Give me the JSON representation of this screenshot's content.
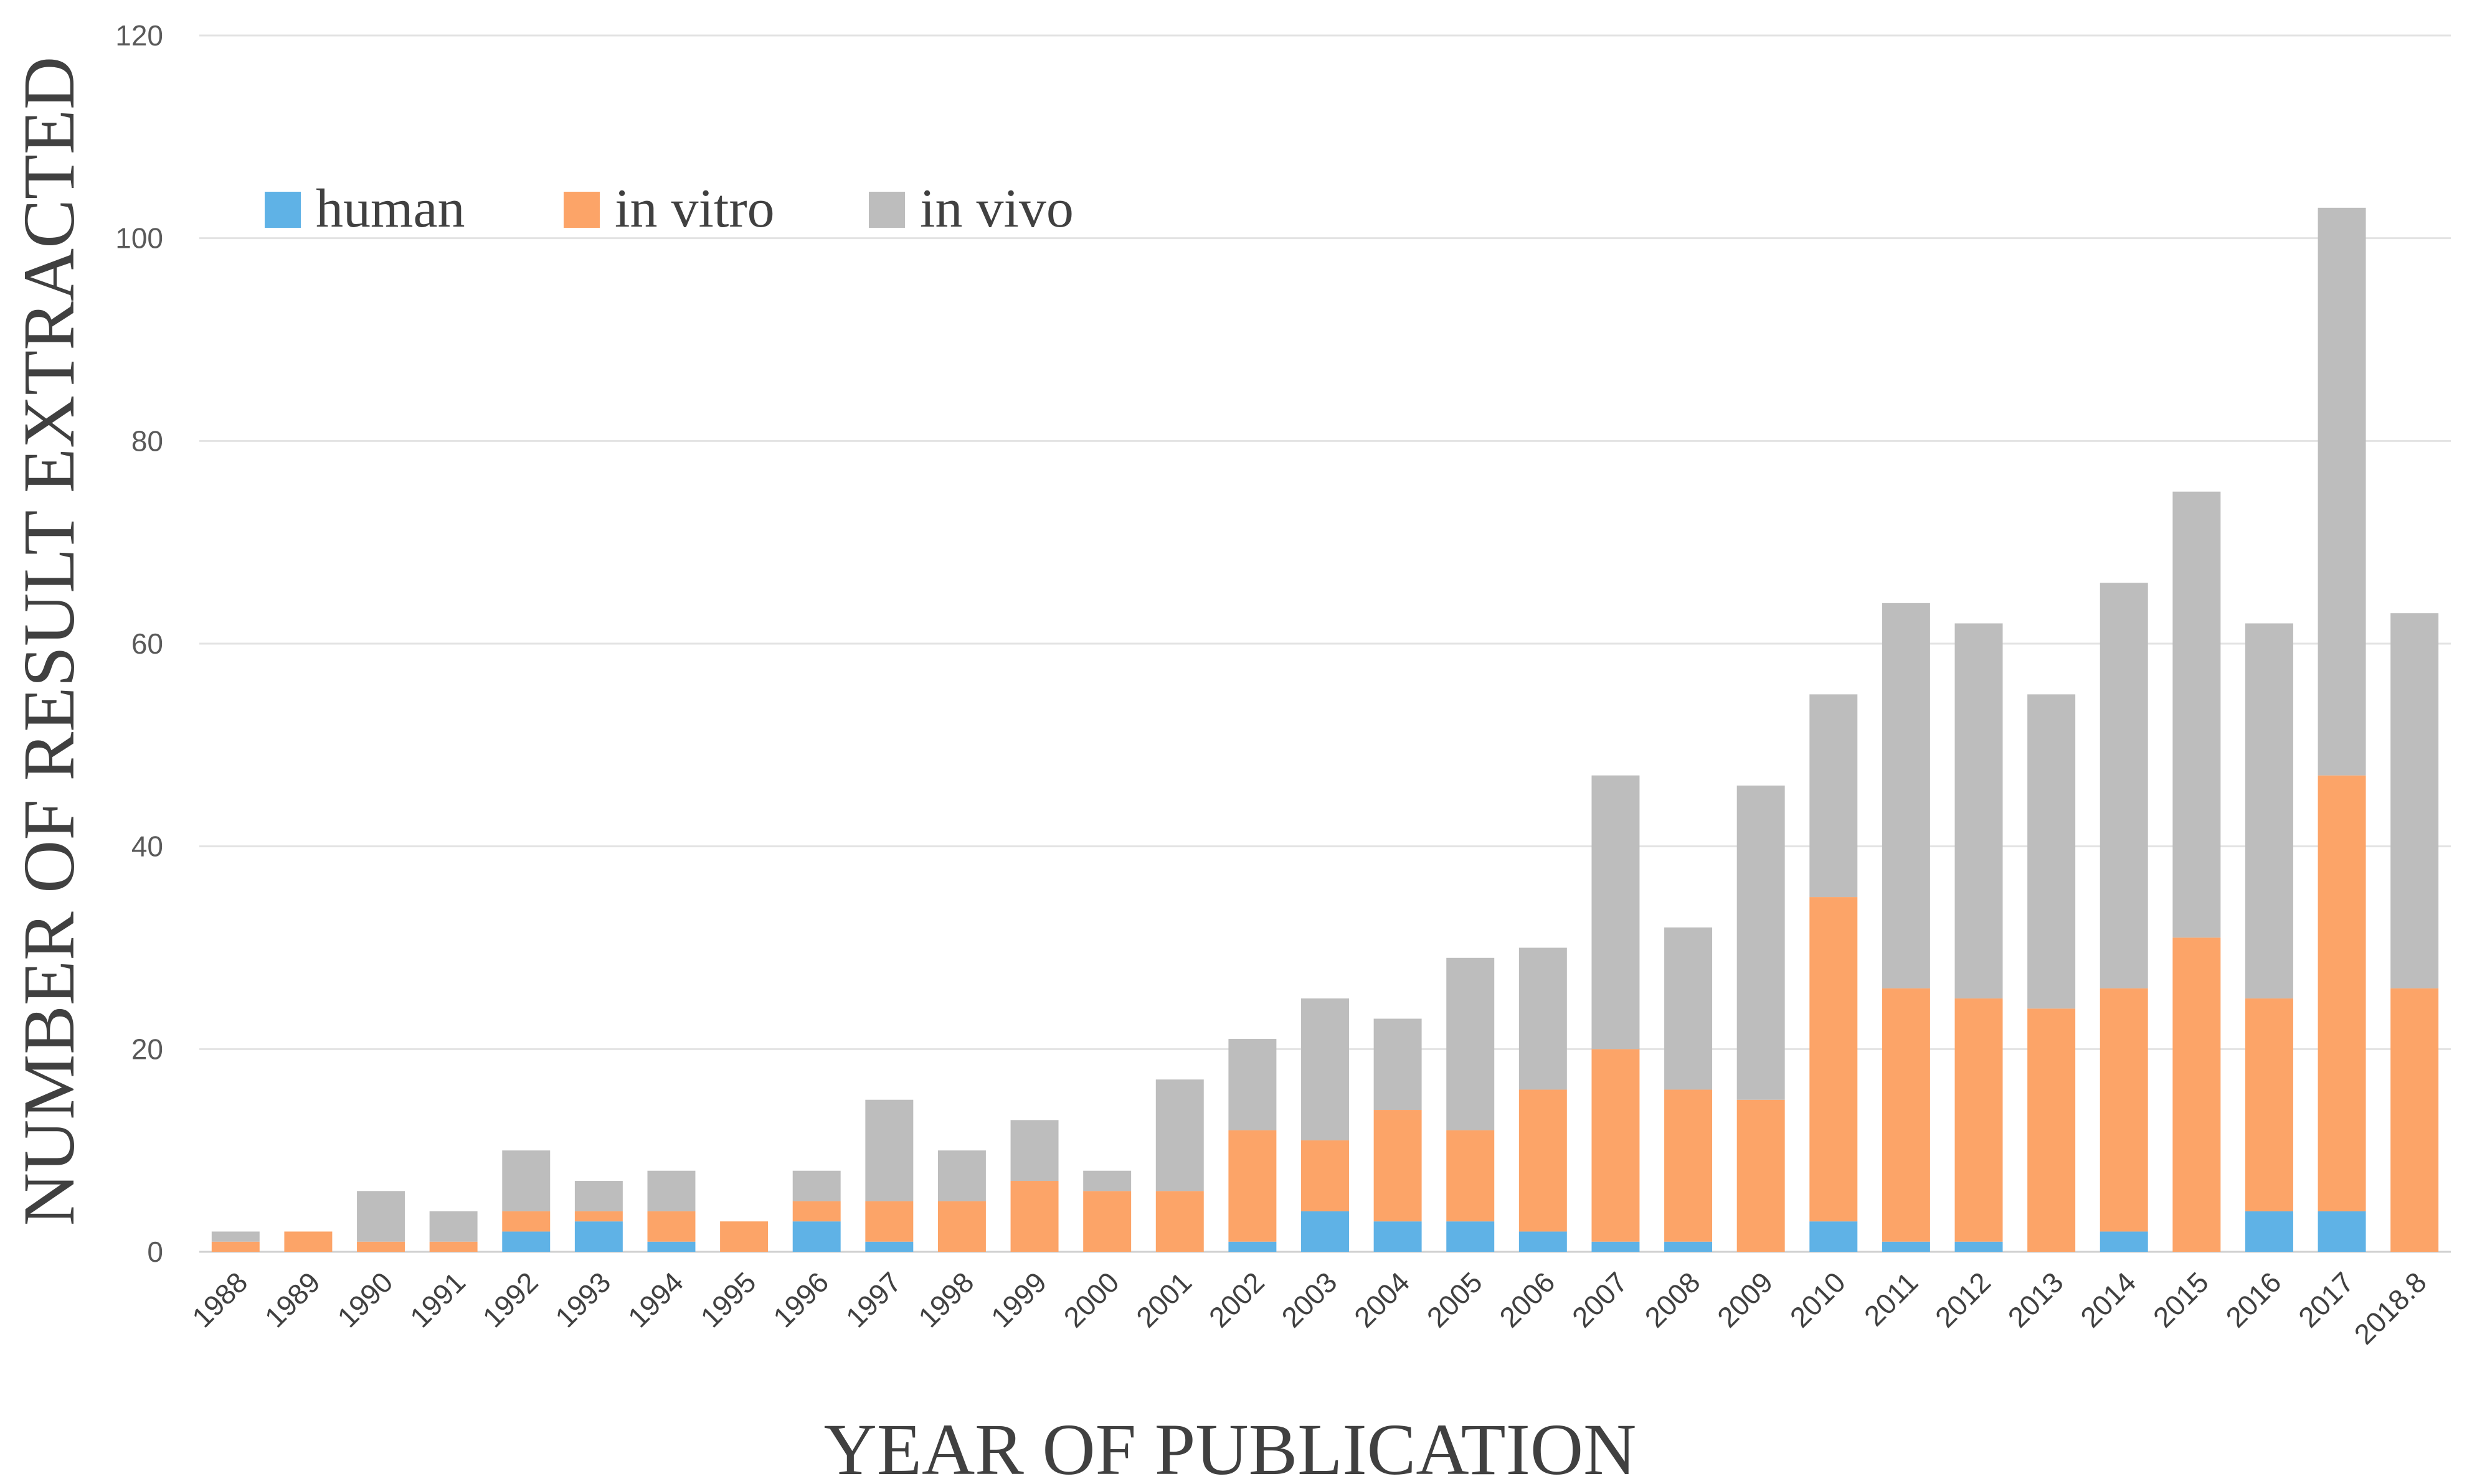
{
  "chart_data": {
    "type": "bar",
    "stacked": true,
    "xlabel": "YEAR OF PUBLICATION",
    "ylabel": "NUMBER OF RESULT EXTRACTED",
    "ylim": [
      0,
      120
    ],
    "yticks": [
      0,
      20,
      40,
      60,
      80,
      100,
      120
    ],
    "grid": true,
    "legend_position": "top-left",
    "categories": [
      "1988",
      "1989",
      "1990",
      "1991",
      "1992",
      "1993",
      "1994",
      "1995",
      "1996",
      "1997",
      "1998",
      "1999",
      "2000",
      "2001",
      "2002",
      "2003",
      "2004",
      "2005",
      "2006",
      "2007",
      "2008",
      "2009",
      "2010",
      "2011",
      "2012",
      "2013",
      "2014",
      "2015",
      "2016",
      "2017",
      "2018.8"
    ],
    "series": [
      {
        "name": "human",
        "color": "#5fb2e6",
        "values": [
          0,
          0,
          0,
          0,
          2,
          3,
          1,
          0,
          3,
          1,
          0,
          0,
          0,
          0,
          1,
          4,
          3,
          3,
          2,
          1,
          1,
          0,
          3,
          1,
          1,
          0,
          2,
          0,
          4,
          4,
          0
        ]
      },
      {
        "name": "in vitro",
        "color": "#fca468",
        "values": [
          1,
          2,
          1,
          1,
          2,
          1,
          3,
          3,
          2,
          4,
          5,
          7,
          6,
          6,
          11,
          7,
          11,
          9,
          14,
          19,
          15,
          15,
          32,
          25,
          24,
          24,
          24,
          31,
          21,
          43,
          26
        ]
      },
      {
        "name": "in vivo",
        "color": "#bdbdbd",
        "values": [
          1,
          0,
          5,
          3,
          6,
          3,
          4,
          0,
          3,
          10,
          5,
          6,
          2,
          11,
          9,
          14,
          9,
          17,
          14,
          27,
          16,
          31,
          20,
          38,
          37,
          31,
          40,
          44,
          37,
          56,
          37
        ]
      }
    ]
  }
}
